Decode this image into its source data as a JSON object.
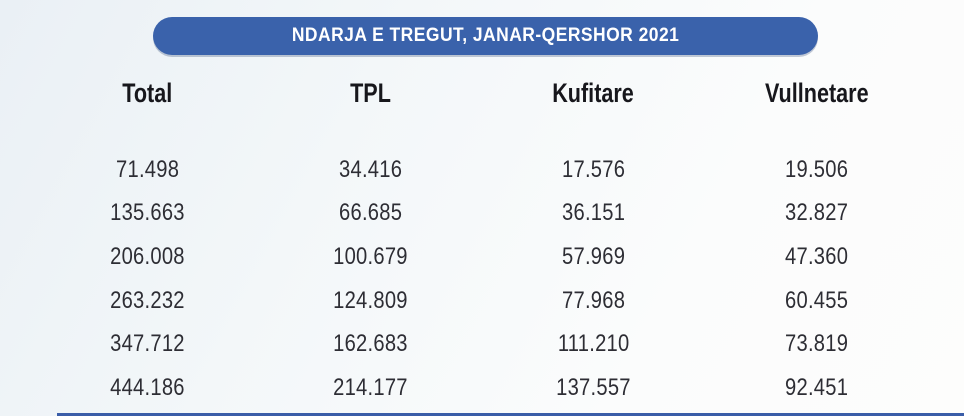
{
  "title": "NDARJA E TREGUT, JANAR-QERSHOR 2021",
  "colors": {
    "accent_blue": "#3a62ab",
    "header_text": "#17171c",
    "number_text": "#2d2d34",
    "title_text": "#ffffff"
  },
  "table": {
    "headers": [
      "Total",
      "TPL",
      "Kufitare",
      "Vullnetare"
    ],
    "rows": [
      [
        "71.498",
        "34.416",
        "17.576",
        "19.506"
      ],
      [
        "135.663",
        "66.685",
        "36.151",
        "32.827"
      ],
      [
        "206.008",
        "100.679",
        "57.969",
        "47.360"
      ],
      [
        "263.232",
        "124.809",
        "77.968",
        "60.455"
      ],
      [
        "347.712",
        "162.683",
        "111.210",
        "73.819"
      ],
      [
        "444.186",
        "214.177",
        "137.557",
        "92.451"
      ]
    ]
  },
  "chart_data": {
    "type": "table",
    "title": "NDARJA E TREGUT, JANAR-QERSHOR 2021",
    "columns": [
      "Total",
      "TPL",
      "Kufitare",
      "Vullnetare"
    ],
    "rows": [
      [
        71498,
        34416,
        17576,
        19506
      ],
      [
        135663,
        66685,
        36151,
        32827
      ],
      [
        206008,
        100679,
        57969,
        47360
      ],
      [
        263232,
        124809,
        77968,
        60455
      ],
      [
        347712,
        162683,
        111210,
        73819
      ],
      [
        444186,
        214177,
        137557,
        92451
      ]
    ],
    "notes": "Values shown with thousands separator as dots; market split table, January-June 2021"
  }
}
